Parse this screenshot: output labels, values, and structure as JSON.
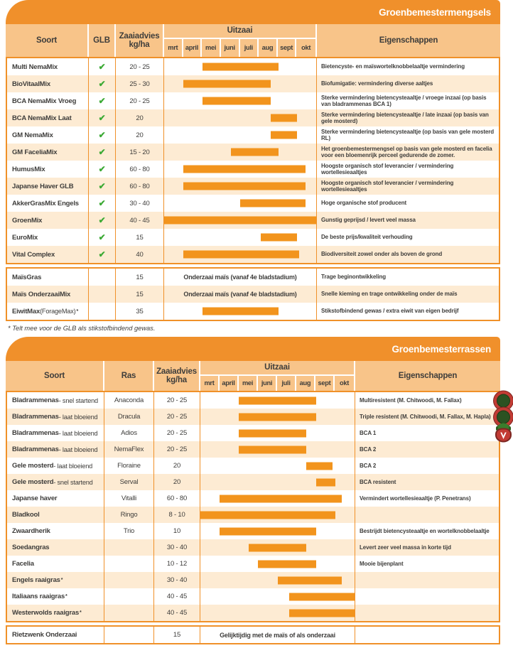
{
  "colors": {
    "band_orange": "#F0902B",
    "header_orange": "#F8C489",
    "row_peach": "#FDEBD3",
    "bar_orange": "#F2941D",
    "grid_orange": "#F09129",
    "text_dark": "#3E3D3B",
    "check_green": "#3CAA35",
    "badge_red": "#C23B34",
    "badge_green": "#2C5222",
    "leaf_green": "#3A7D2C"
  },
  "months": [
    "mrt",
    "april",
    "mei",
    "juni",
    "juli",
    "aug",
    "sept",
    "okt"
  ],
  "table1": {
    "title": "Groenbemestermengsels",
    "columns": {
      "soort": "Soort",
      "glb": "GLB",
      "zaaiadvies_line1": "Zaaiadvies",
      "zaaiadvies_line2": "kg/ha",
      "uitzaai": "Uitzaai",
      "eigenschappen": "Eigenschappen"
    },
    "rows": [
      {
        "soort": "Multi NemaMix",
        "glb": true,
        "kg": "20 - 25",
        "bar": [
          2,
          6
        ],
        "eig": "Bietencyste- en maïswortelknobbelaaltje vermindering"
      },
      {
        "soort": "BioVitaalMix",
        "glb": true,
        "kg": "25 - 30",
        "bar": [
          1,
          5.6
        ],
        "eig": "Biofumigatie: vermindering diverse aaltjes"
      },
      {
        "soort": "BCA NemaMix Vroeg",
        "glb": true,
        "kg": "20 - 25",
        "bar": [
          2,
          5.6
        ],
        "eig": "Sterke vermindering bietencysteaaltje / vroege inzaai (op basis van bladrammenas BCA 1)"
      },
      {
        "soort": "BCA NemaMix Laat",
        "glb": true,
        "kg": "20",
        "bar": [
          5.6,
          7
        ],
        "eig": "Sterke vermindering bietencysteaaltje / late inzaai (op basis van gele mosterd)"
      },
      {
        "soort": "GM NemaMix",
        "glb": true,
        "kg": "20",
        "bar": [
          5.6,
          7
        ],
        "eig": "Sterke vermindering bietencysteaaltje (op basis van gele mosterd RL)"
      },
      {
        "soort": "GM FaceliaMix",
        "glb": true,
        "kg": "15 - 20",
        "bar": [
          3.5,
          6
        ],
        "eig": "Het groenbemestermengsel op basis van gele mosterd en facelia voor een bloemenrijk perceel gedurende de zomer."
      },
      {
        "soort": "HumusMix",
        "glb": true,
        "kg": "60 - 80",
        "bar": [
          1,
          7.45
        ],
        "eig": "Hoogste organisch stof leverancier / vermindering wortellesieaaltjes"
      },
      {
        "soort": "Japanse Haver GLB",
        "glb": true,
        "kg": "60 - 80",
        "bar": [
          1,
          7.45
        ],
        "eig": "Hoogste organisch stof leverancier / vermindering wortellesieaaltjes"
      },
      {
        "soort": "AkkerGrasMix Engels",
        "glb": true,
        "kg": "30 - 40",
        "bar": [
          4,
          7.45
        ],
        "eig": "Hoge organische stof producent"
      },
      {
        "soort": "GroenMix",
        "glb": true,
        "kg": "40 - 45",
        "bar": [
          0,
          8
        ],
        "eig": "Gunstig geprijsd / levert veel massa"
      },
      {
        "soort": "EuroMix",
        "glb": true,
        "kg": "15",
        "bar": [
          5.1,
          7
        ],
        "eig": "De beste prijs/kwaliteit verhouding"
      },
      {
        "soort": "Vital Complex",
        "glb": true,
        "kg": "40",
        "bar": [
          1,
          7.1
        ],
        "eig": "Biodiversiteit zowel onder als boven de grond"
      }
    ],
    "maize_rows": [
      {
        "soort": "MaïsGras",
        "glb": false,
        "kg": "15",
        "note": "Onderzaai maïs (vanaf 4e bladstadium)",
        "eig": "Trage beginontwikkeling"
      },
      {
        "soort": "Maïs OnderzaaiMix",
        "glb": false,
        "kg": "15",
        "note": "Onderzaai maïs (vanaf 4e bladstadium)",
        "eig": "Snelle kieming en trage ontwikkeling onder de maïs"
      },
      {
        "soort": "EiwitMax",
        "suffix": " (ForageMax)",
        "star": true,
        "glb": false,
        "kg": "35",
        "bar": [
          2,
          6
        ],
        "eig": "Stikstofbindend gewas / extra eiwit van eigen bedrijf"
      }
    ],
    "footnote": "* Telt mee voor de GLB als stikstofbindend gewas."
  },
  "table2": {
    "title": "Groenbemesterrassen",
    "columns": {
      "soort": "Soort",
      "ras": "Ras",
      "zaaiadvies_line1": "Zaaiadvies",
      "zaaiadvies_line2": "kg/ha",
      "uitzaai": "Uitzaai",
      "eigenschappen": "Eigenschappen"
    },
    "rows": [
      {
        "soort": "Bladrammenas",
        "suffix": " - snel startend",
        "ras": "Anaconda",
        "kg": "20 - 25",
        "bar": [
          2,
          6
        ],
        "eig": "Multiresistent (M. Chitwoodi, M. Fallax)",
        "badge": "ring"
      },
      {
        "soort": "Bladrammenas",
        "suffix": " - laat bloeiend",
        "ras": "Dracula",
        "kg": "20 - 25",
        "bar": [
          2,
          6
        ],
        "eig": "Triple resistent (M. Chitwoodi, M. Fallax, M. Hapla)",
        "badge": "ring"
      },
      {
        "soort": "Bladrammenas",
        "suffix": " - laat bloeiend",
        "ras": "Adios",
        "kg": "20 - 25",
        "bar": [
          2,
          5.5
        ],
        "eig": "BCA 1",
        "badge": "beet"
      },
      {
        "soort": "Bladrammenas",
        "suffix": " - laat bloeiend",
        "ras": "NemaFlex",
        "kg": "20 - 25",
        "bar": [
          2,
          5.5
        ],
        "eig": "BCA 2"
      },
      {
        "soort": "Gele mosterd",
        "suffix": " - laat bloeiend",
        "ras": "Floraine",
        "kg": "20",
        "bar": [
          5.5,
          6.85
        ],
        "eig": "BCA 2"
      },
      {
        "soort": "Gele mosterd",
        "suffix": " - snel startend",
        "ras": "Serval",
        "kg": "20",
        "bar": [
          6,
          7
        ],
        "eig": "BCA resistent"
      },
      {
        "soort": "Japanse haver",
        "ras": "Vitalli",
        "kg": "60 - 80",
        "bar": [
          1,
          7.35
        ],
        "eig": "Vermindert wortellesieaaltje (P. Penetrans)"
      },
      {
        "soort": "Bladkool",
        "ras": "Ringo",
        "kg": "8 - 10",
        "bar": [
          0,
          7
        ],
        "eig": ""
      },
      {
        "soort": "Zwaardherik",
        "ras": "Trio",
        "kg": "10",
        "bar": [
          1,
          6
        ],
        "eig": "Bestrijdt bietencysteaaltje en wortelknobbelaaltje"
      },
      {
        "soort": "Soedangras",
        "ras": "",
        "kg": "30 - 40",
        "bar": [
          2.5,
          5.5
        ],
        "eig": "Levert zeer veel massa in korte tijd"
      },
      {
        "soort": "Facelia",
        "ras": "",
        "kg": "10 - 12",
        "bar": [
          3,
          6
        ],
        "eig": "Mooie bijenplant"
      },
      {
        "soort": "Engels raaigras",
        "star": true,
        "ras": "",
        "kg": "30 - 40",
        "bar": [
          4,
          7.35
        ],
        "eig": ""
      },
      {
        "soort": "Italiaans raaigras",
        "star": true,
        "ras": "",
        "kg": "40 - 45",
        "bar": [
          4.6,
          8
        ],
        "eig": ""
      },
      {
        "soort": "Westerwolds raaigras",
        "star": true,
        "ras": "",
        "kg": "40 - 45",
        "bar": [
          4.6,
          8
        ],
        "eig": ""
      }
    ],
    "single_rows": [
      {
        "soort": "Rietzwenk Onderzaai",
        "ras": "",
        "kg": "15",
        "note": "Gelijktijdig met de maïs of als onderzaai",
        "eig": ""
      }
    ]
  }
}
